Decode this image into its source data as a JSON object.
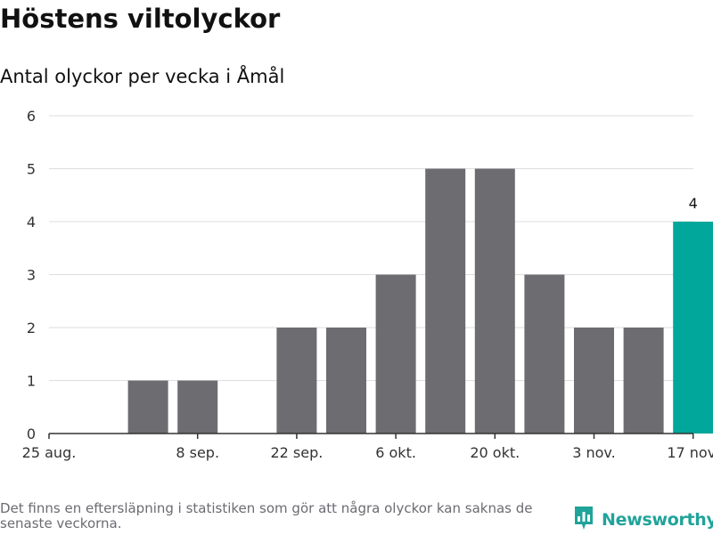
{
  "header": {
    "title": "Höstens viltolyckor",
    "subtitle": "Antal olyckor per vecka i Åmål"
  },
  "chart_data": {
    "type": "bar",
    "title": "Höstens viltolyckor",
    "subtitle": "Antal olyckor per vecka i Åmål",
    "xlabel": "",
    "ylabel": "",
    "ylim": [
      0,
      6
    ],
    "yticks": [
      0,
      1,
      2,
      3,
      4,
      5,
      6
    ],
    "grid": true,
    "x_tick_labels": [
      "25 aug.",
      "8 sep.",
      "22 sep.",
      "6 okt.",
      "20 okt.",
      "3 nov.",
      "17 nov."
    ],
    "x": [
      "2024-08-25",
      "2024-09-01",
      "2024-09-08",
      "2024-09-15",
      "2024-09-22",
      "2024-09-29",
      "2024-10-06",
      "2024-10-13",
      "2024-10-20",
      "2024-10-27",
      "2024-11-03",
      "2024-11-10",
      "2024-11-17"
    ],
    "values": [
      0,
      1,
      1,
      0,
      2,
      2,
      3,
      5,
      5,
      3,
      2,
      2,
      4
    ],
    "highlight_index": 12,
    "highlight_label": "4",
    "colors": {
      "bar": "#6d6c71",
      "highlight": "#00a79a",
      "grid": "#dedede",
      "axis": "#333333"
    }
  },
  "footer": {
    "note": "Det finns en eftersläpning i statistiken som gör att några olyckor kan saknas de senaste veckorna.",
    "brand": "Newsworthy",
    "brand_icon": "bar-chart-icon",
    "brand_color": "#20a39a"
  }
}
